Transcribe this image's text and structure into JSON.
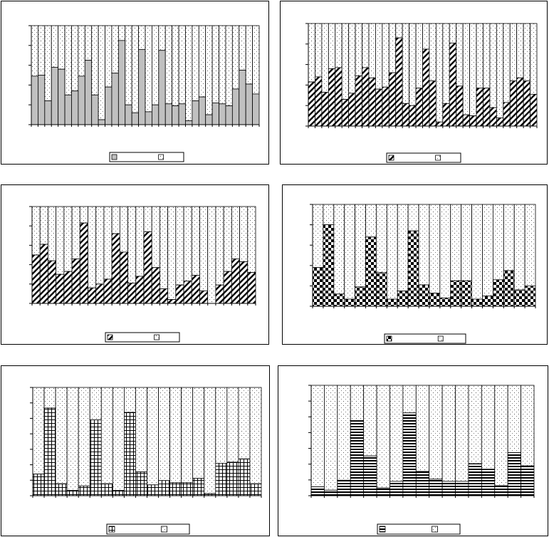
{
  "figure": {
    "background": "#ffffff",
    "bar_color_a": "#c0c0c0",
    "bar_color_b": "#ffffff"
  },
  "chart_data": [
    {
      "type": "bar",
      "stacked": true,
      "normalized": true,
      "pattern": "solid-gray",
      "ylim": [
        0,
        1
      ],
      "legend": "bottom-center",
      "grid": false,
      "series": [
        {
          "name": "",
          "pattern": "solid-gray",
          "values": [
            0.49,
            0.5,
            0.24,
            0.58,
            0.56,
            0.3,
            0.34,
            0.49,
            0.65,
            0.3,
            0.05,
            0.38,
            0.52,
            0.85,
            0.2,
            0.12,
            0.76,
            0.13,
            0.2,
            0.75,
            0.21,
            0.19,
            0.21,
            0.04,
            0.24,
            0.28,
            0.1,
            0.22,
            0.21,
            0.19,
            0.36,
            0.55,
            0.41,
            0.31
          ]
        },
        {
          "name": "",
          "pattern": "dots"
        }
      ]
    },
    {
      "type": "bar",
      "stacked": true,
      "normalized": true,
      "pattern": "diagonal-hatch",
      "ylim": [
        0,
        1
      ],
      "legend": "bottom-center",
      "grid": false,
      "series": [
        {
          "name": "",
          "pattern": "diagonal-hatch",
          "values": [
            0.43,
            0.48,
            0.33,
            0.56,
            0.57,
            0.26,
            0.32,
            0.49,
            0.57,
            0.47,
            0.36,
            0.38,
            0.52,
            0.86,
            0.22,
            0.2,
            0.37,
            0.75,
            0.44,
            0.04,
            0.22,
            0.81,
            0.39,
            0.11,
            0.1,
            0.37,
            0.37,
            0.18,
            0.08,
            0.23,
            0.44,
            0.47,
            0.44,
            0.31
          ]
        },
        {
          "name": "",
          "pattern": "dots"
        }
      ]
    },
    {
      "type": "bar",
      "stacked": true,
      "normalized": true,
      "pattern": "diagonal-hatch",
      "ylim": [
        0,
        1
      ],
      "legend": "bottom-center",
      "grid": false,
      "series": [
        {
          "name": "",
          "pattern": "diagonal-hatch",
          "values": [
            0.5,
            0.61,
            0.44,
            0.3,
            0.33,
            0.46,
            0.83,
            0.16,
            0.2,
            0.25,
            0.72,
            0.53,
            0.21,
            0.28,
            0.74,
            0.37,
            0.15,
            0.04,
            0.19,
            0.23,
            0.29,
            0.13,
            0.0,
            0.19,
            0.33,
            0.46,
            0.43,
            0.32
          ]
        },
        {
          "name": "",
          "pattern": "dots"
        }
      ]
    },
    {
      "type": "bar",
      "stacked": true,
      "normalized": true,
      "pattern": "checkerboard",
      "ylim": [
        0,
        1
      ],
      "legend": "bottom-center",
      "grid": false,
      "series": [
        {
          "name": "",
          "pattern": "checkerboard",
          "values": [
            0.38,
            0.8,
            0.12,
            0.07,
            0.19,
            0.68,
            0.33,
            0.07,
            0.15,
            0.74,
            0.21,
            0.13,
            0.08,
            0.25,
            0.25,
            0.07,
            0.1,
            0.26,
            0.35,
            0.16,
            0.2
          ]
        },
        {
          "name": "",
          "pattern": "dots"
        }
      ]
    },
    {
      "type": "bar",
      "stacked": true,
      "normalized": true,
      "pattern": "grid-hatch",
      "ylim": [
        0,
        1
      ],
      "legend": "bottom-center",
      "grid": false,
      "series": [
        {
          "name": "",
          "pattern": "grid-hatch",
          "values": [
            0.2,
            0.81,
            0.11,
            0.05,
            0.09,
            0.7,
            0.11,
            0.05,
            0.77,
            0.22,
            0.1,
            0.14,
            0.12,
            0.12,
            0.16,
            0.02,
            0.3,
            0.31,
            0.34,
            0.11
          ]
        },
        {
          "name": "",
          "pattern": "dots"
        }
      ]
    },
    {
      "type": "bar",
      "stacked": true,
      "normalized": true,
      "pattern": "horizontal-hatch",
      "ylim": [
        0,
        1
      ],
      "legend": "bottom-center",
      "grid": false,
      "series": [
        {
          "name": "",
          "pattern": "horizontal-hatch",
          "values": [
            0.08,
            0.05,
            0.14,
            0.68,
            0.36,
            0.07,
            0.13,
            0.75,
            0.22,
            0.15,
            0.13,
            0.13,
            0.29,
            0.24,
            0.09,
            0.39,
            0.27
          ]
        },
        {
          "name": "",
          "pattern": "dots"
        }
      ]
    }
  ]
}
